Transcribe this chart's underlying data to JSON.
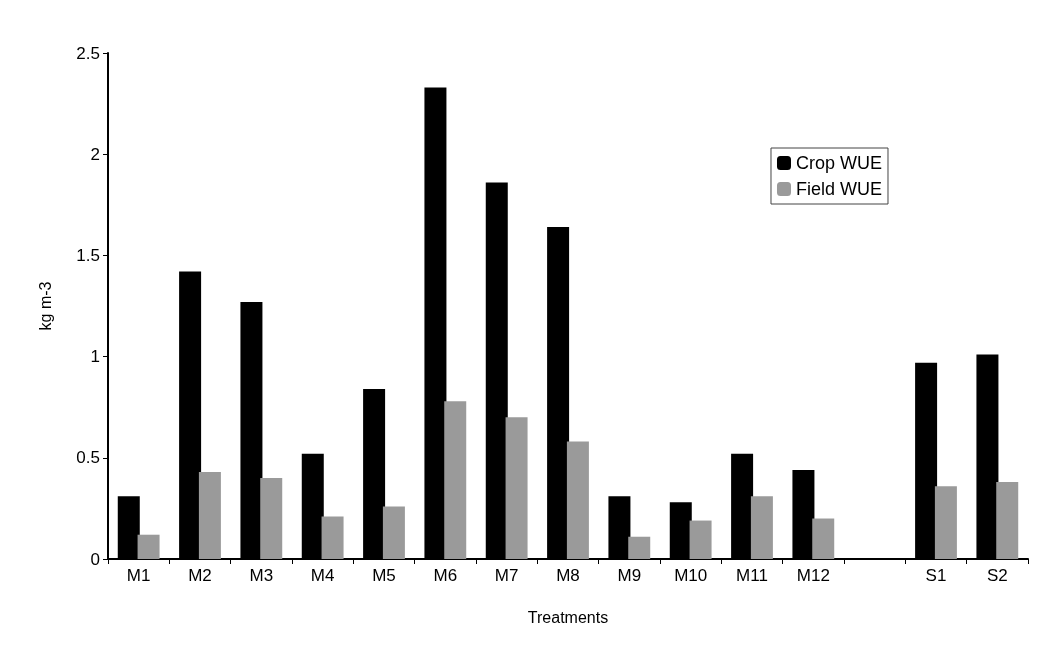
{
  "chart_data": {
    "type": "bar",
    "xlabel": "Treatments",
    "ylabel": "kg m-3",
    "categories": [
      "M1",
      "M2",
      "M3",
      "M4",
      "M5",
      "M6",
      "M7",
      "M8",
      "M9",
      "M10",
      "M11",
      "M12",
      null,
      "S1",
      "S2"
    ],
    "series": [
      {
        "name": "Crop WUE",
        "color": "#000000",
        "values": [
          0.31,
          1.42,
          1.27,
          0.52,
          0.84,
          2.33,
          1.86,
          1.64,
          0.31,
          0.28,
          0.52,
          0.44,
          null,
          0.97,
          1.01
        ]
      },
      {
        "name": "Field WUE",
        "color": "#9a9a9a",
        "values": [
          0.12,
          0.43,
          0.4,
          0.21,
          0.26,
          0.78,
          0.7,
          0.58,
          0.11,
          0.19,
          0.31,
          0.2,
          null,
          0.36,
          0.38
        ]
      }
    ],
    "ylim": [
      0,
      2.5
    ],
    "yticks": [
      0,
      0.5,
      1,
      1.5,
      2,
      2.5
    ],
    "grid": false,
    "legend": "top right"
  }
}
